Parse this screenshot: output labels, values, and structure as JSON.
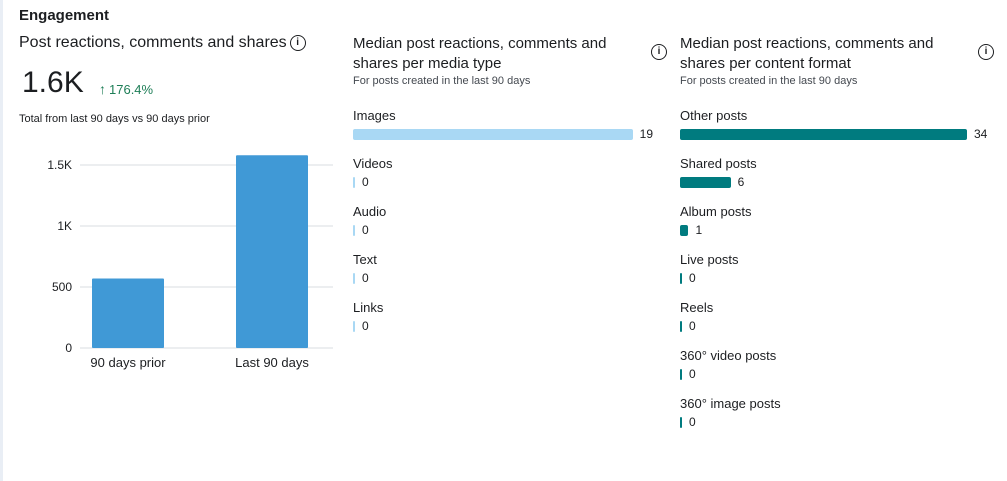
{
  "section": {
    "title": "Engagement"
  },
  "panel1": {
    "title": "Post reactions, comments and shares",
    "info_icon": "i",
    "big_number": "1.6K",
    "delta": "176.4%",
    "delta_color": "#1e7e57",
    "subtitle": "Total from last 90 days vs 90 days prior"
  },
  "chart_data": {
    "type": "bar",
    "categories": [
      "90 days prior",
      "Last 90 days"
    ],
    "values": [
      570,
      1580
    ],
    "ylim": [
      0,
      1500
    ],
    "yticks": [
      0,
      500,
      1000,
      1500
    ],
    "ytick_labels": [
      "0",
      "500",
      "1K",
      "1.5K"
    ],
    "bar_color": "#4099d6",
    "grid": true
  },
  "panel2": {
    "title": "Median post reactions, comments and shares per media type",
    "subtitle": "For posts created in the last 90 days",
    "info_icon": "i",
    "bar_color": "#a9d8f4",
    "max": 19,
    "items": [
      {
        "label": "Images",
        "value": 19
      },
      {
        "label": "Videos",
        "value": 0
      },
      {
        "label": "Audio",
        "value": 0
      },
      {
        "label": "Text",
        "value": 0
      },
      {
        "label": "Links",
        "value": 0
      }
    ]
  },
  "panel3": {
    "title": "Median post reactions, comments and shares per content format",
    "subtitle": "For posts created in the last 90 days",
    "info_icon": "i",
    "bar_color": "#007b7f",
    "max": 34,
    "items": [
      {
        "label": "Other posts",
        "value": 34
      },
      {
        "label": "Shared posts",
        "value": 6
      },
      {
        "label": "Album posts",
        "value": 1
      },
      {
        "label": "Live posts",
        "value": 0
      },
      {
        "label": "Reels",
        "value": 0
      },
      {
        "label": "360° video posts",
        "value": 0
      },
      {
        "label": "360° image posts",
        "value": 0
      }
    ]
  }
}
